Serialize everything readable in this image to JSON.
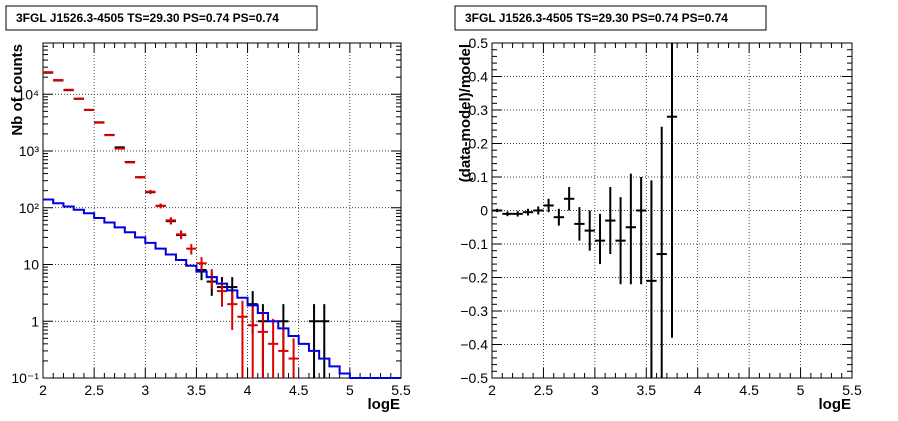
{
  "colors": {
    "data": "#000000",
    "model": "#dd0000",
    "background": "#0000dd"
  },
  "chart_data": [
    {
      "type": "line",
      "title": "3FGL J1526.3-4505 TS=29.30 PS=0.74 PS=0.74",
      "xlabel": "logE",
      "ylabel": "Nb of counts",
      "xlim": [
        2,
        5.5
      ],
      "ylim": [
        0.1,
        80000
      ],
      "yscale": "log",
      "grid": true,
      "x_ticks": [
        "2",
        "2.5",
        "3",
        "3.5",
        "4",
        "4.5",
        "5",
        "5.5"
      ],
      "y_ticks": [
        {
          "value": 0.1,
          "label": "10⁻¹"
        },
        {
          "value": 1,
          "label": "1"
        },
        {
          "value": 10,
          "label": "10"
        },
        {
          "value": 100,
          "label": "10²"
        },
        {
          "value": 1000,
          "label": "10³"
        },
        {
          "value": 10000,
          "label": "10⁴"
        }
      ],
      "x_edges": [
        2.0,
        2.1,
        2.2,
        2.3,
        2.4,
        2.5,
        2.6,
        2.7,
        2.8,
        2.9,
        3.0,
        3.1,
        3.2,
        3.3,
        3.4,
        3.5,
        3.6,
        3.7,
        3.8,
        3.9,
        4.0,
        4.1,
        4.2,
        4.3,
        4.4,
        4.5,
        4.6,
        4.7,
        4.8,
        4.9,
        5.0,
        5.1,
        5.2,
        5.3,
        5.4,
        5.5
      ],
      "series": [
        {
          "style": "points",
          "color": "#000000",
          "points": [
            {
              "x": 2.05,
              "y": 24000,
              "ylo": 23700,
              "yhi": 24300
            },
            {
              "x": 2.15,
              "y": 17500,
              "ylo": 17250,
              "yhi": 17750
            },
            {
              "x": 2.25,
              "y": 11800,
              "ylo": 11600,
              "yhi": 12000
            },
            {
              "x": 2.35,
              "y": 8300,
              "ylo": 8200,
              "yhi": 8400
            },
            {
              "x": 2.45,
              "y": 5300,
              "ylo": 5220,
              "yhi": 5380
            },
            {
              "x": 2.55,
              "y": 3200,
              "ylo": 3140,
              "yhi": 3260
            },
            {
              "x": 2.65,
              "y": 1920,
              "ylo": 1880,
              "yhi": 1960
            },
            {
              "x": 2.75,
              "y": 1160,
              "ylo": 1125,
              "yhi": 1195
            },
            {
              "x": 2.85,
              "y": 640,
              "ylo": 615,
              "yhi": 665
            },
            {
              "x": 2.95,
              "y": 345,
              "ylo": 327,
              "yhi": 363
            },
            {
              "x": 3.05,
              "y": 188,
              "ylo": 175,
              "yhi": 202
            },
            {
              "x": 3.15,
              "y": 108,
              "ylo": 98,
              "yhi": 118
            },
            {
              "x": 3.25,
              "y": 58,
              "ylo": 51,
              "yhi": 66
            },
            {
              "x": 3.35,
              "y": 33,
              "ylo": 28,
              "yhi": 39
            },
            {
              "x": 3.55,
              "y": 8,
              "ylo": 5.3,
              "yhi": 10.8
            },
            {
              "x": 3.65,
              "y": 5,
              "ylo": 2.8,
              "yhi": 7.2
            },
            {
              "x": 3.75,
              "y": 4,
              "ylo": 2,
              "yhi": 6
            },
            {
              "x": 3.85,
              "y": 4,
              "ylo": 2,
              "yhi": 6
            },
            {
              "x": 4.05,
              "y": 2,
              "ylo": 0.6,
              "yhi": 3.4
            },
            {
              "x": 4.15,
              "y": 1,
              "ylo": 0.1,
              "yhi": 2
            },
            {
              "x": 4.35,
              "y": 1,
              "ylo": 0.1,
              "yhi": 2
            },
            {
              "x": 4.65,
              "y": 1,
              "ylo": 0.1,
              "yhi": 2
            },
            {
              "x": 4.75,
              "y": 1,
              "ylo": 0.1,
              "yhi": 2
            }
          ]
        },
        {
          "style": "points",
          "color": "#dd0000",
          "points": [
            {
              "x": 2.05,
              "y": 24500,
              "ylo": 24200,
              "yhi": 24800
            },
            {
              "x": 2.15,
              "y": 17800,
              "ylo": 17550,
              "yhi": 18050
            },
            {
              "x": 2.25,
              "y": 12000,
              "ylo": 11800,
              "yhi": 12200
            },
            {
              "x": 2.35,
              "y": 8400,
              "ylo": 8300,
              "yhi": 8500
            },
            {
              "x": 2.45,
              "y": 5300,
              "ylo": 5220,
              "yhi": 5380
            },
            {
              "x": 2.55,
              "y": 3150,
              "ylo": 3090,
              "yhi": 3210
            },
            {
              "x": 2.65,
              "y": 1900,
              "ylo": 1860,
              "yhi": 1940
            },
            {
              "x": 2.75,
              "y": 1100,
              "ylo": 1070,
              "yhi": 1130
            },
            {
              "x": 2.85,
              "y": 630,
              "ylo": 605,
              "yhi": 655
            },
            {
              "x": 2.95,
              "y": 345,
              "ylo": 327,
              "yhi": 363
            },
            {
              "x": 3.05,
              "y": 192,
              "ylo": 178,
              "yhi": 206
            },
            {
              "x": 3.15,
              "y": 108,
              "ylo": 98,
              "yhi": 118
            },
            {
              "x": 3.25,
              "y": 60,
              "ylo": 52,
              "yhi": 68
            },
            {
              "x": 3.35,
              "y": 34,
              "ylo": 28,
              "yhi": 40
            },
            {
              "x": 3.45,
              "y": 19,
              "ylo": 15,
              "yhi": 23
            },
            {
              "x": 3.55,
              "y": 10.5,
              "ylo": 7.5,
              "yhi": 13.5
            },
            {
              "x": 3.65,
              "y": 6,
              "ylo": 3.7,
              "yhi": 8.3
            },
            {
              "x": 3.75,
              "y": 3.4,
              "ylo": 1.8,
              "yhi": 5
            },
            {
              "x": 3.85,
              "y": 2,
              "ylo": 0.7,
              "yhi": 3.3
            },
            {
              "x": 3.95,
              "y": 1.2,
              "ylo": 0.1,
              "yhi": 2.3
            },
            {
              "x": 4.05,
              "y": 0.85,
              "ylo": 0.1,
              "yhi": 1.8
            },
            {
              "x": 4.15,
              "y": 0.65,
              "ylo": 0.1,
              "yhi": 1.5
            },
            {
              "x": 4.25,
              "y": 0.4,
              "ylo": 0.1,
              "yhi": 1.1
            },
            {
              "x": 4.35,
              "y": 0.3,
              "ylo": 0.1,
              "yhi": 0.8
            },
            {
              "x": 4.45,
              "y": 0.22,
              "ylo": 0.1,
              "yhi": 0.5
            }
          ]
        },
        {
          "style": "step",
          "color": "#0000dd",
          "values": [
            140,
            120,
            105,
            92,
            80,
            66,
            55,
            45,
            37,
            30,
            24,
            19,
            15,
            12,
            9.5,
            7.5,
            6,
            4.6,
            3.5,
            2.6,
            1.9,
            1.4,
            1.0,
            0.75,
            0.55,
            0.4,
            0.3,
            0.22,
            0.16,
            0.12,
            0.1,
            0.1,
            0.1,
            0.1,
            0.1
          ]
        }
      ]
    },
    {
      "type": "scatter",
      "title": "3FGL J1526.3-4505 TS=29.30 PS=0.74 PS=0.74",
      "xlabel": "logE",
      "ylabel": "(data-model)/model",
      "xlim": [
        2,
        5.5
      ],
      "ylim": [
        -0.5,
        0.5
      ],
      "grid": true,
      "x_ticks": [
        "2",
        "2.5",
        "3",
        "3.5",
        "4",
        "4.5",
        "5",
        "5.5"
      ],
      "y_ticks": [
        "−0.5",
        "−0.4",
        "−0.3",
        "−0.2",
        "−0.1",
        "0",
        "0.1",
        "0.2",
        "0.3",
        "0.4",
        "0.5"
      ],
      "series": [
        {
          "style": "points",
          "color": "#000000",
          "points": [
            {
              "x": 2.05,
              "y": 0.0,
              "ylo": -0.005,
              "yhi": 0.005
            },
            {
              "x": 2.15,
              "y": -0.01,
              "ylo": -0.017,
              "yhi": -0.003
            },
            {
              "x": 2.25,
              "y": -0.01,
              "ylo": -0.018,
              "yhi": -0.002
            },
            {
              "x": 2.35,
              "y": -0.005,
              "ylo": -0.015,
              "yhi": 0.005
            },
            {
              "x": 2.45,
              "y": 0.0,
              "ylo": -0.012,
              "yhi": 0.012
            },
            {
              "x": 2.55,
              "y": 0.015,
              "ylo": -0.005,
              "yhi": 0.035
            },
            {
              "x": 2.65,
              "y": -0.02,
              "ylo": -0.045,
              "yhi": 0.005
            },
            {
              "x": 2.75,
              "y": 0.035,
              "ylo": 0.0,
              "yhi": 0.07
            },
            {
              "x": 2.85,
              "y": -0.04,
              "ylo": -0.09,
              "yhi": 0.01
            },
            {
              "x": 2.95,
              "y": -0.06,
              "ylo": -0.12,
              "yhi": 0.0
            },
            {
              "x": 3.05,
              "y": -0.09,
              "ylo": -0.16,
              "yhi": -0.01
            },
            {
              "x": 3.15,
              "y": -0.03,
              "ylo": -0.13,
              "yhi": 0.07
            },
            {
              "x": 3.25,
              "y": -0.09,
              "ylo": -0.22,
              "yhi": 0.04
            },
            {
              "x": 3.35,
              "y": -0.05,
              "ylo": -0.22,
              "yhi": 0.11
            },
            {
              "x": 3.45,
              "y": 0.0,
              "ylo": -0.22,
              "yhi": 0.1
            },
            {
              "x": 3.55,
              "y": -0.21,
              "ylo": -0.5,
              "yhi": 0.09
            },
            {
              "x": 3.65,
              "y": -0.13,
              "ylo": -0.5,
              "yhi": 0.25
            },
            {
              "x": 3.75,
              "y": 0.28,
              "ylo": -0.38,
              "yhi": 0.5
            }
          ]
        }
      ]
    }
  ]
}
